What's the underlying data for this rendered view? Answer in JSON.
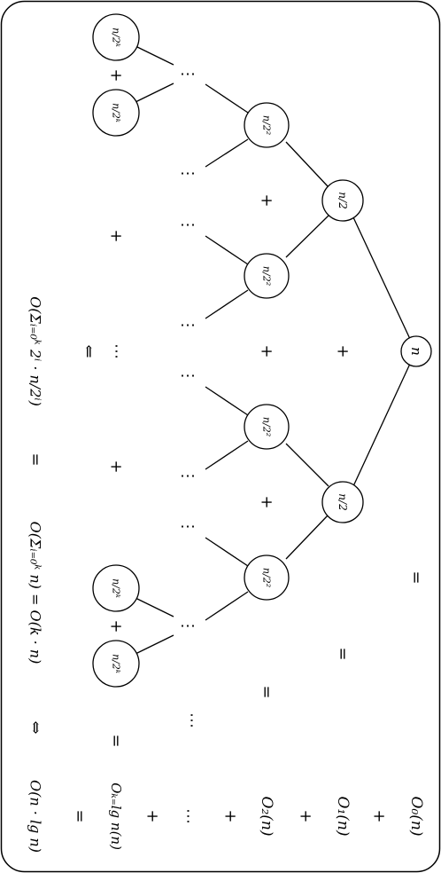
{
  "tree": {
    "root": "n",
    "level1": [
      "n/2",
      "n/2"
    ],
    "level2": [
      "n/2²",
      "n/2²",
      "n/2²",
      "n/2²"
    ],
    "leaves_top": [
      "n/2ᵏ",
      "n/2ᵏ"
    ],
    "leaves_bottom": [
      "n/2ᵏ",
      "n/2ᵏ"
    ],
    "plus": "+",
    "dots": "⋯",
    "equals": "="
  },
  "levels": {
    "o0": "O₀(n)",
    "o1": "O₁(n)",
    "o2": "O₂(n)",
    "ok": "Oₖ₌lg n(n)",
    "dots": "⋯",
    "plus": "+",
    "equals": "="
  },
  "formula": {
    "sum_big_o": "O(Σᵢ₌₀ᵏ 2ⁱ · n/2ⁱ)",
    "arrow": "⇐",
    "equals": "=",
    "sum_n": "O(Σᵢ₌₀ᵏ n) = O(k · n)",
    "iff": "⇔",
    "result": "O(n · lg n)"
  }
}
